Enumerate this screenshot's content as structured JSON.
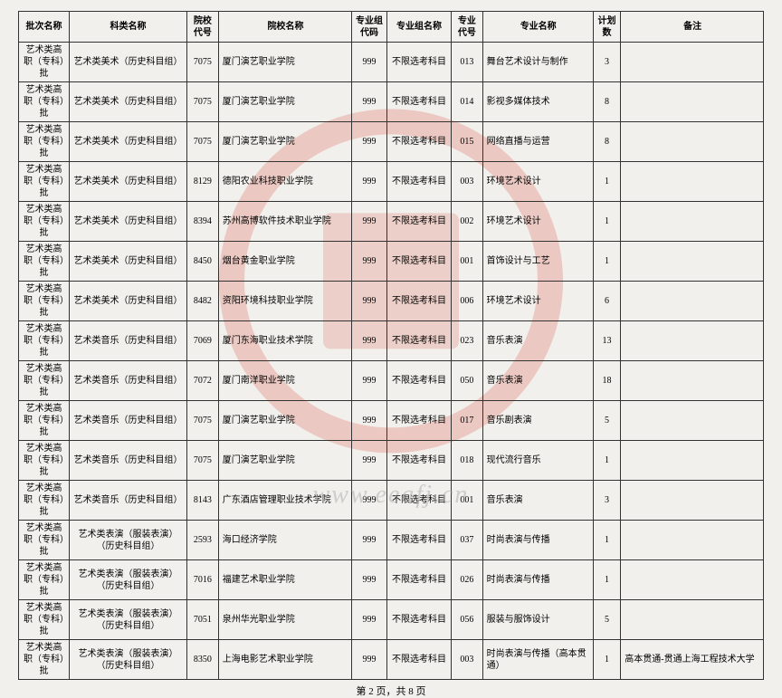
{
  "headers": [
    "批次名称",
    "科类名称",
    "院校代号",
    "院校名称",
    "专业组代码",
    "专业组名称",
    "专业代号",
    "专业名称",
    "计划数",
    "备注"
  ],
  "batch": "艺术类高职（专科）批",
  "rows": [
    {
      "cat": "艺术类美术（历史科目组）",
      "code": "7075",
      "school": "厦门演艺职业学院",
      "gcode": "999",
      "gname": "不限选考科目",
      "mcode": "013",
      "major": "舞台艺术设计与制作",
      "plan": "3",
      "note": ""
    },
    {
      "cat": "艺术类美术（历史科目组）",
      "code": "7075",
      "school": "厦门演艺职业学院",
      "gcode": "999",
      "gname": "不限选考科目",
      "mcode": "014",
      "major": "影视多媒体技术",
      "plan": "8",
      "note": ""
    },
    {
      "cat": "艺术类美术（历史科目组）",
      "code": "7075",
      "school": "厦门演艺职业学院",
      "gcode": "999",
      "gname": "不限选考科目",
      "mcode": "015",
      "major": "网络直播与运营",
      "plan": "8",
      "note": ""
    },
    {
      "cat": "艺术类美术（历史科目组）",
      "code": "8129",
      "school": "德阳农业科技职业学院",
      "gcode": "999",
      "gname": "不限选考科目",
      "mcode": "003",
      "major": "环境艺术设计",
      "plan": "1",
      "note": ""
    },
    {
      "cat": "艺术类美术（历史科目组）",
      "code": "8394",
      "school": "苏州高博软件技术职业学院",
      "gcode": "999",
      "gname": "不限选考科目",
      "mcode": "002",
      "major": "环境艺术设计",
      "plan": "1",
      "note": ""
    },
    {
      "cat": "艺术类美术（历史科目组）",
      "code": "8450",
      "school": "烟台黄金职业学院",
      "gcode": "999",
      "gname": "不限选考科目",
      "mcode": "001",
      "major": "首饰设计与工艺",
      "plan": "1",
      "note": ""
    },
    {
      "cat": "艺术类美术（历史科目组）",
      "code": "8482",
      "school": "资阳环境科技职业学院",
      "gcode": "999",
      "gname": "不限选考科目",
      "mcode": "006",
      "major": "环境艺术设计",
      "plan": "6",
      "note": ""
    },
    {
      "cat": "艺术类音乐（历史科目组）",
      "code": "7069",
      "school": "厦门东海职业技术学院",
      "gcode": "999",
      "gname": "不限选考科目",
      "mcode": "023",
      "major": "音乐表演",
      "plan": "13",
      "note": ""
    },
    {
      "cat": "艺术类音乐（历史科目组）",
      "code": "7072",
      "school": "厦门南洋职业学院",
      "gcode": "999",
      "gname": "不限选考科目",
      "mcode": "050",
      "major": "音乐表演",
      "plan": "18",
      "note": ""
    },
    {
      "cat": "艺术类音乐（历史科目组）",
      "code": "7075",
      "school": "厦门演艺职业学院",
      "gcode": "999",
      "gname": "不限选考科目",
      "mcode": "017",
      "major": "音乐剧表演",
      "plan": "5",
      "note": ""
    },
    {
      "cat": "艺术类音乐（历史科目组）",
      "code": "7075",
      "school": "厦门演艺职业学院",
      "gcode": "999",
      "gname": "不限选考科目",
      "mcode": "018",
      "major": "现代流行音乐",
      "plan": "1",
      "note": ""
    },
    {
      "cat": "艺术类音乐（历史科目组）",
      "code": "8143",
      "school": "广东酒店管理职业技术学院",
      "gcode": "999",
      "gname": "不限选考科目",
      "mcode": "001",
      "major": "音乐表演",
      "plan": "3",
      "note": ""
    },
    {
      "cat": "艺术类表演（服装表演）（历史科目组）",
      "code": "2593",
      "school": "海口经济学院",
      "gcode": "999",
      "gname": "不限选考科目",
      "mcode": "037",
      "major": "时尚表演与传播",
      "plan": "1",
      "note": ""
    },
    {
      "cat": "艺术类表演（服装表演）（历史科目组）",
      "code": "7016",
      "school": "福建艺术职业学院",
      "gcode": "999",
      "gname": "不限选考科目",
      "mcode": "026",
      "major": "时尚表演与传播",
      "plan": "1",
      "note": ""
    },
    {
      "cat": "艺术类表演（服装表演）（历史科目组）",
      "code": "7051",
      "school": "泉州华光职业学院",
      "gcode": "999",
      "gname": "不限选考科目",
      "mcode": "056",
      "major": "服装与服饰设计",
      "plan": "5",
      "note": ""
    },
    {
      "cat": "艺术类表演（服装表演）（历史科目组）",
      "code": "8350",
      "school": "上海电影艺术职业学院",
      "gcode": "999",
      "gname": "不限选考科目",
      "mcode": "003",
      "major": "时尚表演与传播（高本贯通）",
      "plan": "1",
      "note": "高本贯通-贯通上海工程技术大学"
    }
  ],
  "pager": "第 2 页，共 8 页",
  "wm": "www.eeafj.cn"
}
